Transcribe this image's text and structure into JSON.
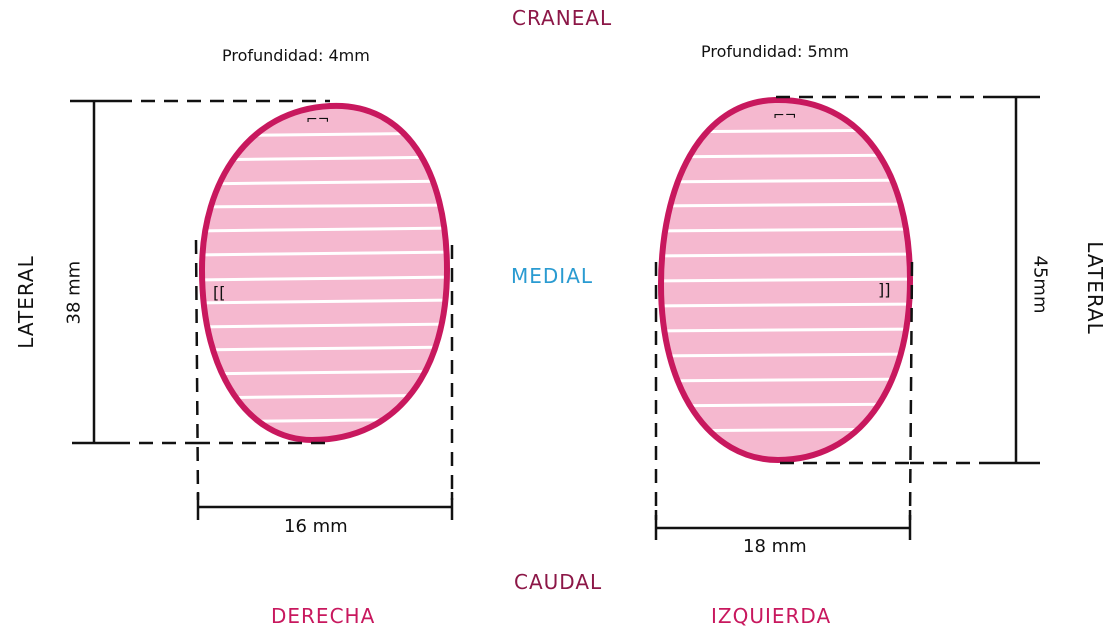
{
  "colors": {
    "outline": "#c8185e",
    "fill": "#f5b8cf",
    "craneal": "#8c1747",
    "medial": "#2a9bd1",
    "side": "#c8185e",
    "ink": "#111111",
    "stripe": "#ffffff"
  },
  "labels": {
    "craneal": "CRANEAL",
    "medial": "MEDIAL",
    "caudal": "CAUDAL",
    "lateral_left": "LATERAL",
    "lateral_right": "LATERAL"
  },
  "left": {
    "side": "DERECHA",
    "depth": "Profundidad: 4mm",
    "height": "38 mm",
    "width": "16 mm",
    "bracket_top": "⌐¬",
    "bracket_side": "[["
  },
  "right": {
    "side": "IZQUIERDA",
    "depth": "Profundidad: 5mm",
    "height": "45mm",
    "width": "18 mm",
    "bracket_top": "⌐¬",
    "bracket_side": "]]"
  }
}
